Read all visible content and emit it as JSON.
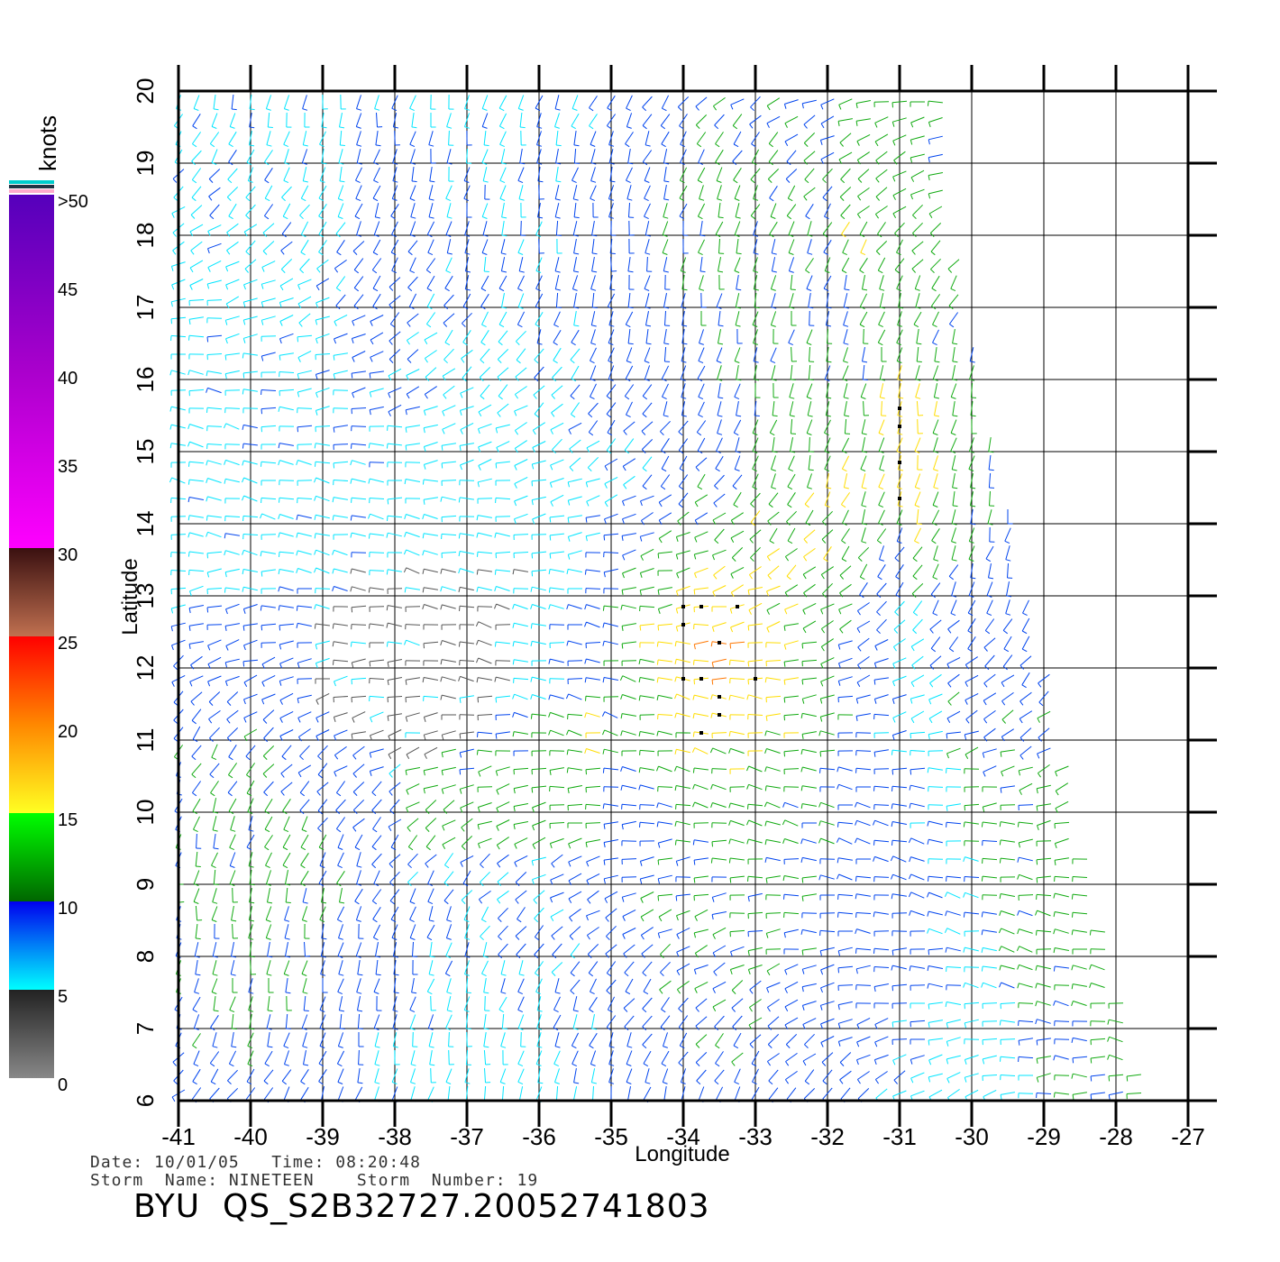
{
  "map": {
    "xlabel": "Longitude",
    "ylabel": "Latitude",
    "lon_range": [
      -41,
      -27
    ],
    "lat_range": [
      6,
      20
    ],
    "lon_ticks": [
      "-41",
      "-40",
      "-39",
      "-38",
      "-37",
      "-36",
      "-35",
      "-34",
      "-33",
      "-32",
      "-31",
      "-30",
      "-29",
      "-28",
      "-27"
    ],
    "lat_ticks": [
      "6",
      "7",
      "8",
      "9",
      "10",
      "11",
      "12",
      "13",
      "14",
      "15",
      "16",
      "17",
      "18",
      "19",
      "20"
    ],
    "swath_east_edge": [
      [
        -30.5,
        20
      ],
      [
        -30.3,
        18
      ],
      [
        -29.7,
        15
      ],
      [
        -29.0,
        12
      ],
      [
        -28.4,
        9
      ],
      [
        -27.6,
        6
      ]
    ],
    "grid": true
  },
  "colorbar": {
    "unit": "knots",
    "labels": [
      ">50",
      "45",
      "40",
      "35",
      "30",
      "25",
      "20",
      "15",
      "10",
      "5",
      "0"
    ],
    "colors": {
      "0-5": "#555555",
      "5-10": "#00e5ff",
      "10-15": "#0044ee",
      "15-20": "#11aa11",
      "20-25": "#ffdd00",
      "25-30": "#ff7700",
      "30-35": "#ff1a00",
      "35-40": "#8a4a2a",
      "40-45": "#ff00ff",
      "45-50": "#7700cc"
    }
  },
  "info": {
    "date_line": "Date: 10/01/05   Time: 08:20:48",
    "storm_line": "Storm  Name: NINETEEN    Storm  Number: 19",
    "title": "BYU  QS_S2B32727.20052741803"
  }
}
